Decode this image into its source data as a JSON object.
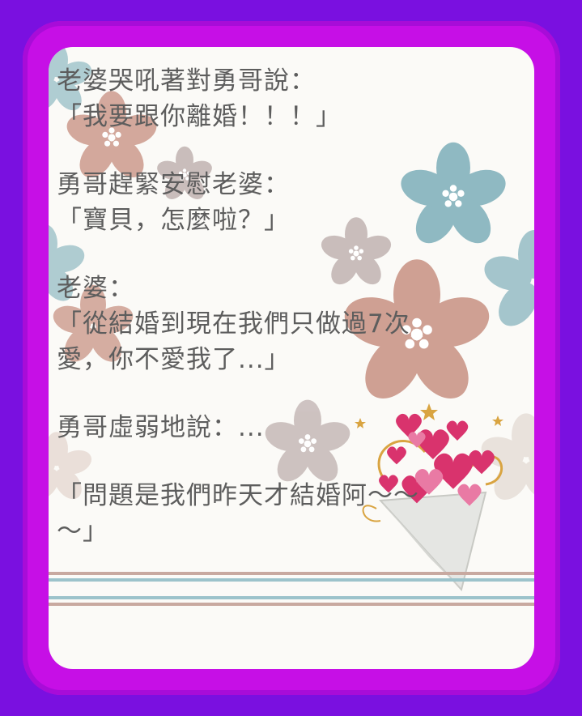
{
  "message": {
    "l1": "老婆哭吼著對勇哥說：",
    "l2": "「我要跟你離婚！！！」",
    "l3": "勇哥趕緊安慰老婆：",
    "l4": "「寶貝，怎麼啦？」",
    "l5": "老婆：",
    "l6": "「從結婚到現在我們只做過7次",
    "l7": "愛，你不愛我了...」",
    "l8": "勇哥虛弱地說：...",
    "l9": "「問題是我們昨天才結婚阿～～",
    "l10": "～」"
  },
  "colors": {
    "background": "#7a10e0",
    "frame": "#c60fe6",
    "card": "#fbfaf7",
    "text": "#5d5d5d",
    "flower_pink": "#cfa093",
    "flower_blue": "#8fb9c2",
    "flower_gray": "#c9bdbb",
    "heart": "#d9336d"
  },
  "decor": {
    "flowers": "flower-icon",
    "hearts": "heart-icon",
    "bouquet": "bouquet-icon"
  }
}
